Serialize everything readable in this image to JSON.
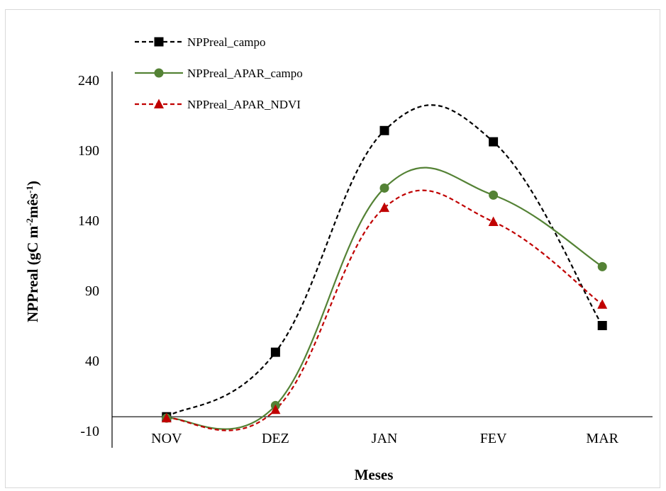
{
  "chart_data": {
    "type": "line",
    "title": "",
    "xlabel": "Meses",
    "ylabel_main": "NPPreal (gC m",
    "ylabel_sup1": "-2",
    "ylabel_mid": "mês",
    "ylabel_sup2": "-1",
    "ylabel_end": ")",
    "categories": [
      "NOV",
      "DEZ",
      "JAN",
      "FEV",
      "MAR"
    ],
    "y_ticks": [
      "240",
      "190",
      "140",
      "90",
      "40",
      "-10"
    ],
    "ylim": [
      -10,
      240
    ],
    "smooth": true,
    "grid": false,
    "legend_position": "top-left",
    "series": [
      {
        "name": "NPPreal_campo",
        "values": [
          0,
          46,
          204,
          196,
          65
        ],
        "color": "#000000",
        "dash": "dashed",
        "marker": "square"
      },
      {
        "name": "NPPreal_APAR_campo",
        "values": [
          -1,
          8,
          163,
          158,
          107
        ],
        "color": "#548235",
        "dash": "solid",
        "marker": "circle"
      },
      {
        "name": "NPPreal_APAR_NDVI",
        "values": [
          -1,
          5,
          149,
          139,
          80
        ],
        "color": "#c00000",
        "dash": "dashed",
        "marker": "triangle"
      }
    ]
  }
}
